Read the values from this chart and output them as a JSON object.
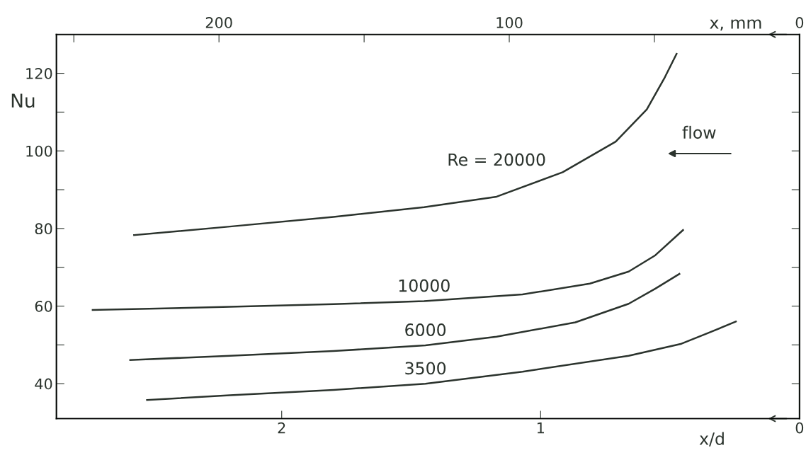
{
  "chart_data": {
    "type": "line",
    "xlabel": "x/d",
    "x2label": "x, mm",
    "ylabel": "Nu",
    "xlim": [
      2.87,
      0
    ],
    "xticks": [
      2,
      1,
      0
    ],
    "x2lim": [
      256,
      0
    ],
    "x2ticks": [
      {
        "value": 250,
        "label": null
      },
      200,
      {
        "value": 150,
        "label": null
      },
      100,
      {
        "value": 50,
        "label": null
      },
      0
    ],
    "ylim": [
      31,
      130
    ],
    "yticks": [
      40,
      {
        "value": 50,
        "label": null
      },
      60,
      {
        "value": 70,
        "label": null
      },
      80,
      {
        "value": 90,
        "label": null
      },
      100,
      {
        "value": 110,
        "label": null
      },
      120
    ],
    "grid": false,
    "legend": false,
    "marker": "none",
    "line_style": "solid",
    "annotations": [
      "flow"
    ],
    "series": [
      {
        "name": "Re = 20000",
        "color": "#2b332d",
        "x": [
          2.57,
          2.2,
          1.8,
          1.45,
          1.17,
          0.915,
          0.71,
          0.59,
          0.52,
          0.475
        ],
        "values": [
          78.3,
          80.5,
          83,
          85.5,
          88.2,
          94.5,
          102.4,
          110.7,
          119,
          125
        ]
      },
      {
        "name": "10000",
        "color": "#2b332d",
        "x": [
          2.73,
          2.2,
          1.8,
          1.45,
          1.07,
          0.81,
          0.66,
          0.557,
          0.45
        ],
        "values": [
          59,
          59.8,
          60.5,
          61.3,
          63,
          65.8,
          68.9,
          73.1,
          79.6
        ]
      },
      {
        "name": "6000",
        "color": "#2b332d",
        "x": [
          2.585,
          2.2,
          1.8,
          1.445,
          1.17,
          0.866,
          0.66,
          0.557,
          0.464
        ],
        "values": [
          46.1,
          47.2,
          48.4,
          49.9,
          52.1,
          55.8,
          60.6,
          64.5,
          68.3
        ]
      },
      {
        "name": "3500",
        "color": "#2b332d",
        "x": [
          2.52,
          2.2,
          1.8,
          1.445,
          1.07,
          0.66,
          0.456,
          0.352,
          0.246
        ],
        "values": [
          35.8,
          37,
          38.4,
          40,
          43.1,
          47.2,
          50.3,
          53.1,
          56
        ]
      }
    ]
  }
}
